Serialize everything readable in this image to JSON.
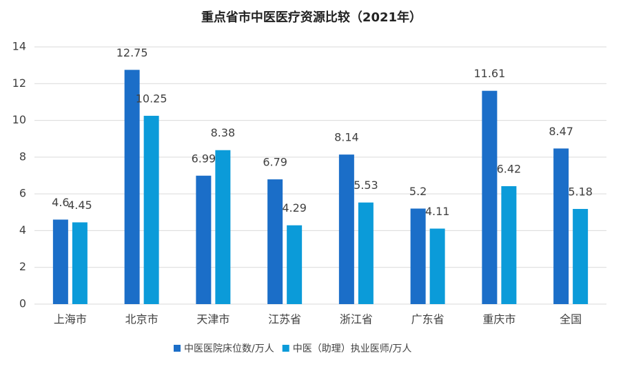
{
  "chart_data": {
    "type": "bar",
    "title": "重点省市中医医疗资源比较（2021年）",
    "categories": [
      "上海市",
      "北京市",
      "天津市",
      "江苏省",
      "浙江省",
      "广东省",
      "重庆市",
      "全国"
    ],
    "series": [
      {
        "name": "中医医院床位数/万人",
        "color": "#1b6ec8",
        "values": [
          4.6,
          12.75,
          6.99,
          6.79,
          8.14,
          5.2,
          11.61,
          8.47
        ]
      },
      {
        "name": "中医（助理）执业医师/万人",
        "color": "#0b9bd9",
        "values": [
          4.45,
          10.25,
          8.38,
          4.29,
          5.53,
          4.11,
          6.42,
          5.18
        ]
      }
    ],
    "ylim": [
      0,
      14
    ],
    "yticks": [
      0,
      2,
      4,
      6,
      8,
      10,
      12,
      14
    ],
    "grid": true,
    "legend": "bottom"
  }
}
